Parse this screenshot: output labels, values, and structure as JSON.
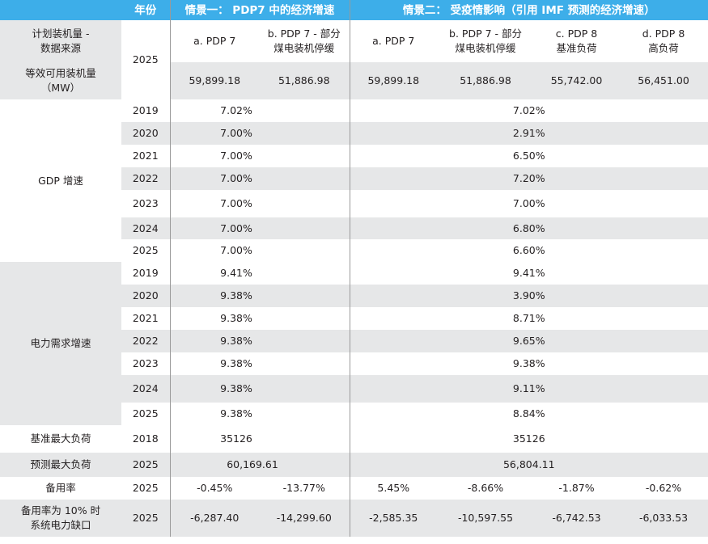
{
  "header": {
    "col1": "",
    "col2": "年份",
    "scenario1": "情景一： PDP7 中的经济增速",
    "scenario2": "情景二： 受疫情影响（引用 IMF 预测的经济增速）"
  },
  "rows": {
    "source": {
      "label": "计划装机量 -\n数据来源",
      "year": "2025",
      "cols": [
        "a. PDP 7",
        "b. PDP 7 - 部分\n煤电装机停缓",
        "a. PDP 7",
        "b. PDP 7 - 部分\n煤电装机停缓",
        "c. PDP 8\n基准负荷",
        "d. PDP 8\n高负荷"
      ]
    },
    "capacity": {
      "label": "等效可用装机量\n（MW）",
      "cols": [
        "59,899.18",
        "51,886.98",
        "59,899.18",
        "51,886.98",
        "55,742.00",
        "56,451.00"
      ]
    },
    "gdp": {
      "label": "GDP 增速",
      "years": [
        "2019",
        "2020",
        "2021",
        "2022",
        "2023",
        "2024",
        "2025"
      ],
      "s1": [
        "7.02%",
        "7.00%",
        "7.00%",
        "7.00%",
        "7.00%",
        "7.00%",
        "7.00%"
      ],
      "s2": [
        "7.02%",
        "2.91%",
        "6.50%",
        "7.20%",
        "7.00%",
        "6.80%",
        "6.60%"
      ]
    },
    "power": {
      "label": "电力需求增速",
      "years": [
        "2019",
        "2020",
        "2021",
        "2022",
        "2023",
        "2024",
        "2025"
      ],
      "s1": [
        "9.41%",
        "9.38%",
        "9.38%",
        "9.38%",
        "9.38%",
        "9.38%",
        "9.38%"
      ],
      "s2": [
        "9.41%",
        "3.90%",
        "8.71%",
        "9.65%",
        "9.38%",
        "9.11%",
        "8.84%"
      ]
    },
    "baseload": {
      "label": "基准最大负荷",
      "year": "2018",
      "s1": "35126",
      "s2": "35126"
    },
    "forecast": {
      "label": "预测最大负荷",
      "year": "2025",
      "s1": "60,169.61",
      "s2": "56,804.11"
    },
    "reserve": {
      "label": "备用率",
      "year": "2025",
      "cols": [
        "-0.45%",
        "-13.77%",
        "5.45%",
        "-8.66%",
        "-1.87%",
        "-0.62%"
      ]
    },
    "gap": {
      "label": "备用率为 10% 时\n系统电力缺口",
      "year": "2025",
      "cols": [
        "-6,287.40",
        "-14,299.60",
        "-2,585.35",
        "-10,597.55",
        "-6,742.53",
        "-6,033.53"
      ]
    }
  }
}
